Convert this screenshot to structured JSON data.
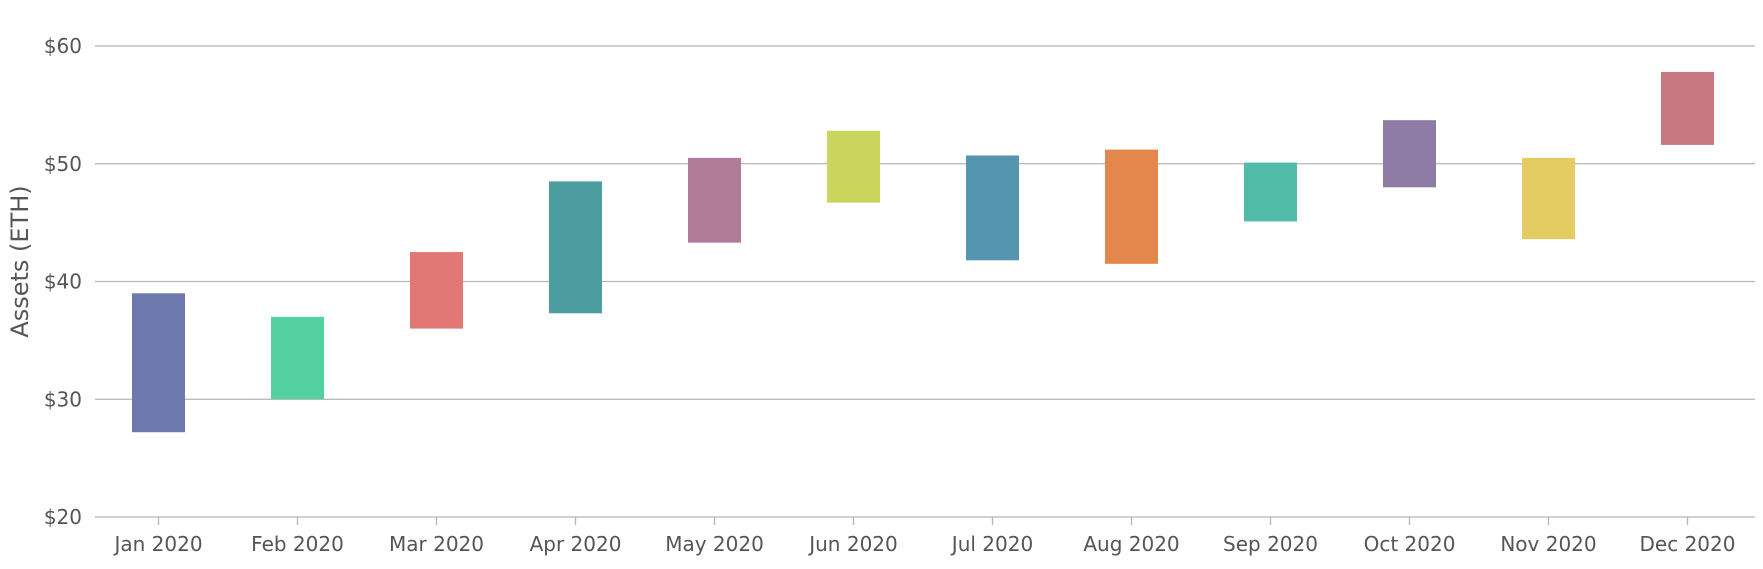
{
  "chart_data": {
    "type": "bar",
    "subtype": "floating-range",
    "title": "",
    "xlabel": "",
    "ylabel": "Assets (ETH)",
    "y_tick_prefix": "$",
    "ylim": [
      20,
      60
    ],
    "y_ticks": [
      20,
      30,
      40,
      50,
      60
    ],
    "grid": true,
    "legend": "none",
    "categories": [
      "Jan 2020",
      "Feb 2020",
      "Mar 2020",
      "Apr 2020",
      "May 2020",
      "Jun 2020",
      "Jul 2020",
      "Aug 2020",
      "Sep 2020",
      "Oct 2020",
      "Nov 2020",
      "Dec 2020"
    ],
    "low": [
      27.2,
      30.0,
      36.0,
      37.3,
      43.3,
      46.7,
      41.8,
      41.5,
      45.1,
      48.0,
      43.6,
      51.6
    ],
    "high": [
      39.0,
      37.0,
      42.5,
      48.5,
      50.5,
      52.8,
      50.7,
      51.2,
      50.1,
      53.7,
      50.5,
      57.8
    ],
    "colors": [
      "#6e79ad",
      "#53d1a0",
      "#e27873",
      "#4c9d9f",
      "#b07c98",
      "#c9d55c",
      "#5495b0",
      "#e3874d",
      "#53bca8",
      "#8f7ca6",
      "#e4cc62",
      "#c77780"
    ]
  }
}
